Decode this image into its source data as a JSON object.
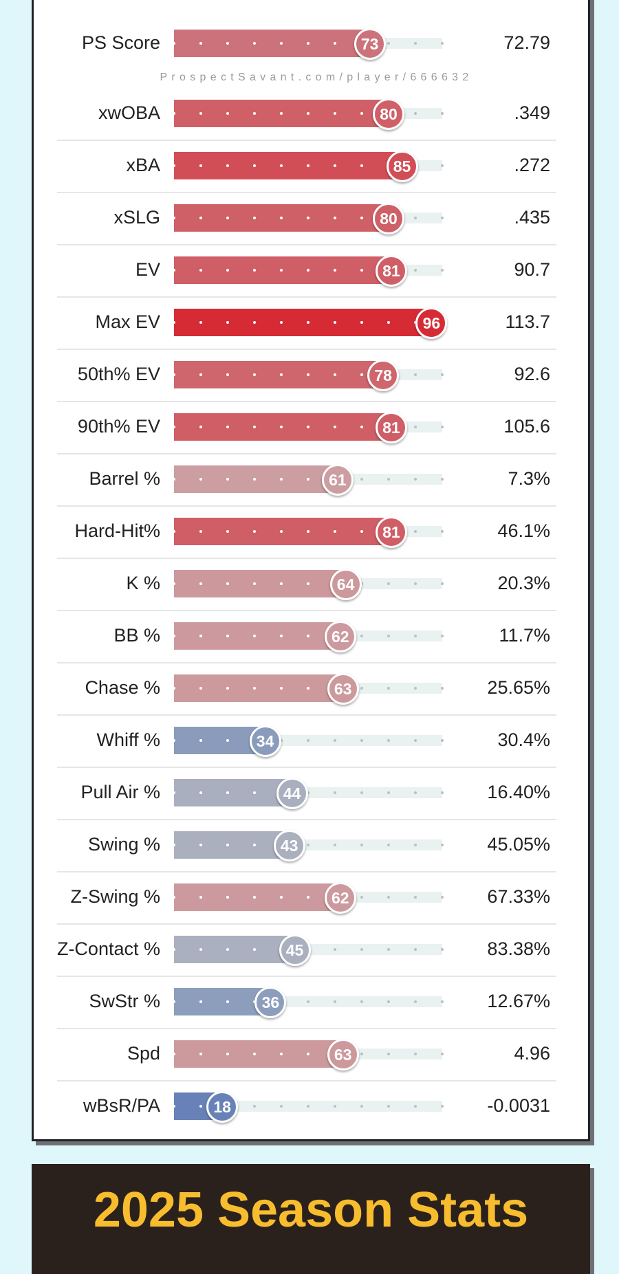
{
  "watermark": "ProspectSavant.com/player/666632",
  "rows": [
    {
      "label": "PS Score",
      "percentile": 73,
      "value": "72.79",
      "color": "#cc727a"
    },
    {
      "label": "xwOBA",
      "percentile": 80,
      "value": ".349",
      "color": "#cf6068"
    },
    {
      "label": "xBA",
      "percentile": 85,
      "value": ".272",
      "color": "#d24e57"
    },
    {
      "label": "xSLG",
      "percentile": 80,
      "value": ".435",
      "color": "#cf6068"
    },
    {
      "label": "EV",
      "percentile": 81,
      "value": "90.7",
      "color": "#cf5e66"
    },
    {
      "label": "Max EV",
      "percentile": 96,
      "value": "113.7",
      "color": "#d62b35"
    },
    {
      "label": "50th% EV",
      "percentile": 78,
      "value": "92.6",
      "color": "#cf666d"
    },
    {
      "label": "90th% EV",
      "percentile": 81,
      "value": "105.6",
      "color": "#cf5e66"
    },
    {
      "label": "Barrel %",
      "percentile": 61,
      "value": "7.3%",
      "color": "#cc9da1"
    },
    {
      "label": "Hard-Hit%",
      "percentile": 81,
      "value": "46.1%",
      "color": "#cf5e66"
    },
    {
      "label": "K %",
      "percentile": 64,
      "value": "20.3%",
      "color": "#cc989c"
    },
    {
      "label": "BB %",
      "percentile": 62,
      "value": "11.7%",
      "color": "#cc9a9e"
    },
    {
      "label": "Chase %",
      "percentile": 63,
      "value": "25.65%",
      "color": "#cc999d"
    },
    {
      "label": "Whiff %",
      "percentile": 34,
      "value": "30.4%",
      "color": "#8a9bbb"
    },
    {
      "label": "Pull Air %",
      "percentile": 44,
      "value": "16.40%",
      "color": "#a9afbf"
    },
    {
      "label": "Swing %",
      "percentile": 43,
      "value": "45.05%",
      "color": "#aab0be"
    },
    {
      "label": "Z-Swing %",
      "percentile": 62,
      "value": "67.33%",
      "color": "#cc9a9e"
    },
    {
      "label": "Z-Contact %",
      "percentile": 45,
      "value": "83.38%",
      "color": "#aab0bf"
    },
    {
      "label": "SwStr %",
      "percentile": 36,
      "value": "12.67%",
      "color": "#8d9ebd"
    },
    {
      "label": "Spd",
      "percentile": 63,
      "value": "4.96",
      "color": "#cc999d"
    },
    {
      "label": "wBsR/PA",
      "percentile": 18,
      "value": "-0.0031",
      "color": "#6882b8"
    }
  ],
  "season": {
    "title": "2025 Season Stats"
  }
}
